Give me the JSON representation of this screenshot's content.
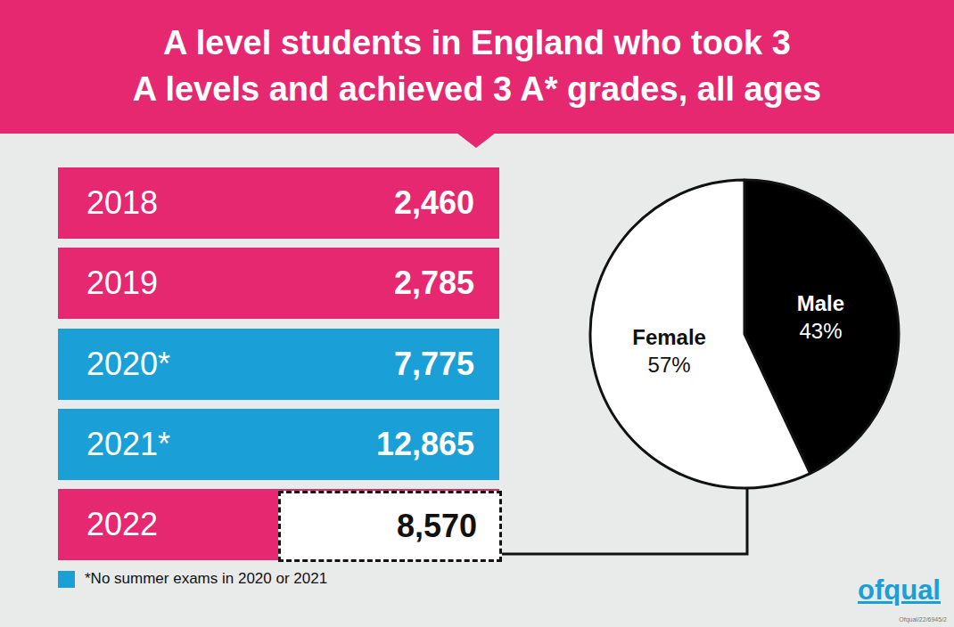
{
  "title": [
    "A level students in England who took 3",
    "A levels and achieved 3 A* grades, all ages"
  ],
  "table": {
    "rows": [
      {
        "year": "2018",
        "value": "2,460",
        "color": "#e5286f"
      },
      {
        "year": "2019",
        "value": "2,785",
        "color": "#e5286f"
      },
      {
        "year": "2020*",
        "value": "7,775",
        "color": "#1a9fd6"
      },
      {
        "year": "2021*",
        "value": "12,865",
        "color": "#1a9fd6"
      },
      {
        "year": "2022",
        "value": "8,570",
        "color": "#e5286f",
        "emphasis": true
      }
    ]
  },
  "footnote": {
    "text": "*No summer exams in 2020 or 2021",
    "color": "#1a9fd6"
  },
  "logo": "ofqual",
  "code": "Ofqual/22/6945/2",
  "chart_data": {
    "type": "pie",
    "labels": [
      "Male",
      "Female"
    ],
    "values": [
      43,
      57
    ],
    "value_labels": [
      "43%",
      "57%"
    ],
    "colors": [
      "#000000",
      "#ffffff"
    ],
    "data_labels": true
  }
}
